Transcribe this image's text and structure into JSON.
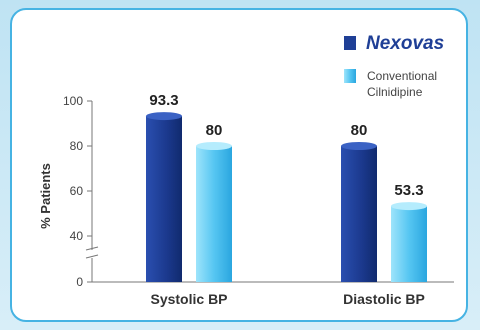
{
  "chart_data": {
    "type": "bar",
    "categories": [
      "Systolic BP",
      "Diastolic BP"
    ],
    "series": [
      {
        "name": "Nexovas",
        "values": [
          93.3,
          80
        ],
        "color": "#1f3f96",
        "value_labels": [
          "93.3",
          "80"
        ]
      },
      {
        "name": "Conventional Cilnidipine",
        "values": [
          80,
          53.3
        ],
        "color": "#58c7f2",
        "value_labels": [
          "80",
          "53.3"
        ]
      }
    ],
    "ylabel": "% Patients",
    "yticks": [
      0,
      40,
      60,
      80,
      100
    ],
    "ylim": [
      0,
      100
    ],
    "axis_break": true,
    "legend_position": "top-right",
    "legend_labels": {
      "brand": "Nexovas",
      "conventional_line1": "Conventional",
      "conventional_line2": "Cilnidipine"
    }
  }
}
